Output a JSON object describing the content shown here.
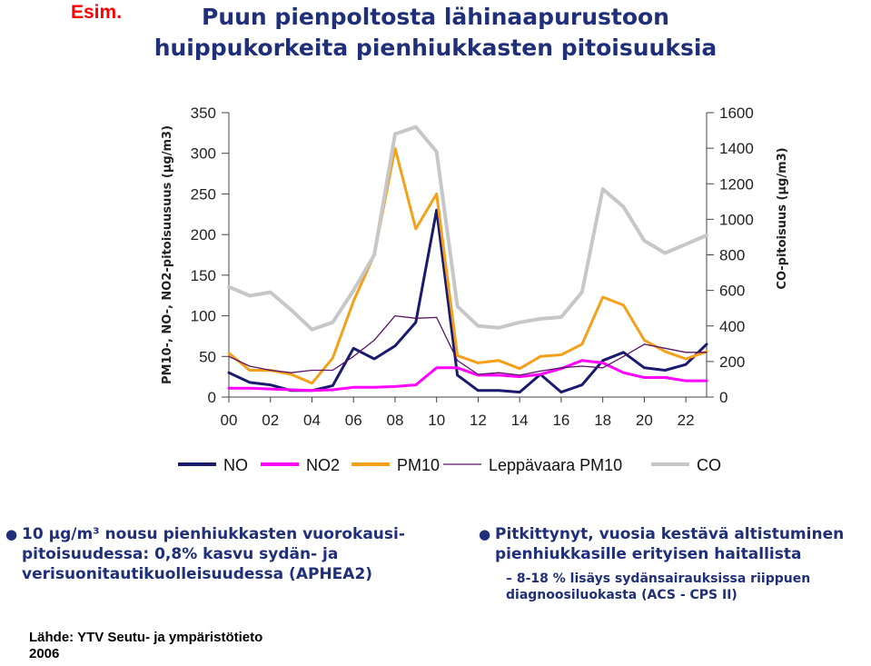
{
  "tag": "Esim.",
  "title_line1": "Puun pienpoltosta lähinaapurustoon",
  "title_line2": "huippukorkeita pienhiukkasten pitoisuuksia",
  "chart_data": {
    "type": "line",
    "x": [
      0,
      1,
      2,
      3,
      4,
      5,
      6,
      7,
      8,
      9,
      10,
      11,
      12,
      13,
      14,
      15,
      16,
      17,
      18,
      19,
      20,
      21,
      22,
      23
    ],
    "x_tick_labels": [
      "00",
      "02",
      "04",
      "06",
      "08",
      "10",
      "12",
      "14",
      "16",
      "18",
      "20",
      "22"
    ],
    "ylabel_left": "PM10-, NO-, NO2-pitoisuusuus (µg/m3)",
    "ylabel_right": "CO-pitoisuus (µg/m3)",
    "ylim_left": [
      0,
      350
    ],
    "ylim_right": [
      0,
      1600
    ],
    "y_ticks_left": [
      "0",
      "50",
      "100",
      "150",
      "200",
      "250",
      "300",
      "350"
    ],
    "y_ticks_right": [
      "0",
      "200",
      "400",
      "600",
      "800",
      "1000",
      "1200",
      "1400",
      "1600"
    ],
    "legend_position": "bottom",
    "series": [
      {
        "name": "NO",
        "axis": "left",
        "color": "#1a1a6e",
        "width": 3,
        "values": [
          30,
          18,
          15,
          8,
          8,
          14,
          60,
          47,
          63,
          92,
          230,
          27,
          8,
          8,
          6,
          28,
          6,
          15,
          45,
          55,
          36,
          33,
          40,
          65
        ]
      },
      {
        "name": "NO2",
        "axis": "left",
        "color": "#ff00ff",
        "width": 3,
        "values": [
          11,
          11,
          10,
          9,
          8,
          9,
          12,
          12,
          13,
          15,
          36,
          36,
          27,
          27,
          25,
          28,
          35,
          45,
          42,
          30,
          24,
          24,
          20,
          20
        ]
      },
      {
        "name": "PM10",
        "axis": "left",
        "color": "#f5a01a",
        "width": 3,
        "values": [
          54,
          33,
          33,
          28,
          17,
          48,
          118,
          175,
          306,
          207,
          250,
          51,
          42,
          45,
          35,
          50,
          52,
          65,
          123,
          113,
          70,
          56,
          47,
          56
        ]
      },
      {
        "name": "Leppävaara PM10",
        "axis": "left",
        "color": "#5a1466",
        "width": 1.3,
        "values": [
          50,
          38,
          33,
          30,
          33,
          33,
          50,
          70,
          100,
          97,
          98,
          45,
          28,
          30,
          27,
          32,
          36,
          38,
          36,
          50,
          65,
          60,
          55,
          55
        ]
      },
      {
        "name": "CO",
        "axis": "right",
        "color": "#c7c7c7",
        "width": 4,
        "values": [
          620,
          570,
          590,
          490,
          380,
          420,
          600,
          800,
          1480,
          1520,
          1380,
          510,
          400,
          390,
          420,
          440,
          450,
          590,
          1170,
          1070,
          880,
          810,
          860,
          910
        ]
      }
    ]
  },
  "bullet1": "10 µg/m³ nousu pienhiukkasten vuorokausi-pitoisuudessa: 0,8% kasvu sydän- ja verisuonitautikuolleisuudessa (APHEA2)",
  "bullet2": "Pitkittynyt, vuosia kestävä altistuminen pienhiukkasille erityisen haitallista",
  "bullet3": "– 8-18 % lisäys sydänsairauksissa riippuen diagnoosiluokasta (ACS - CPS II)",
  "source": "Lähde: YTV Seutu- ja ympäristötieto 2006"
}
